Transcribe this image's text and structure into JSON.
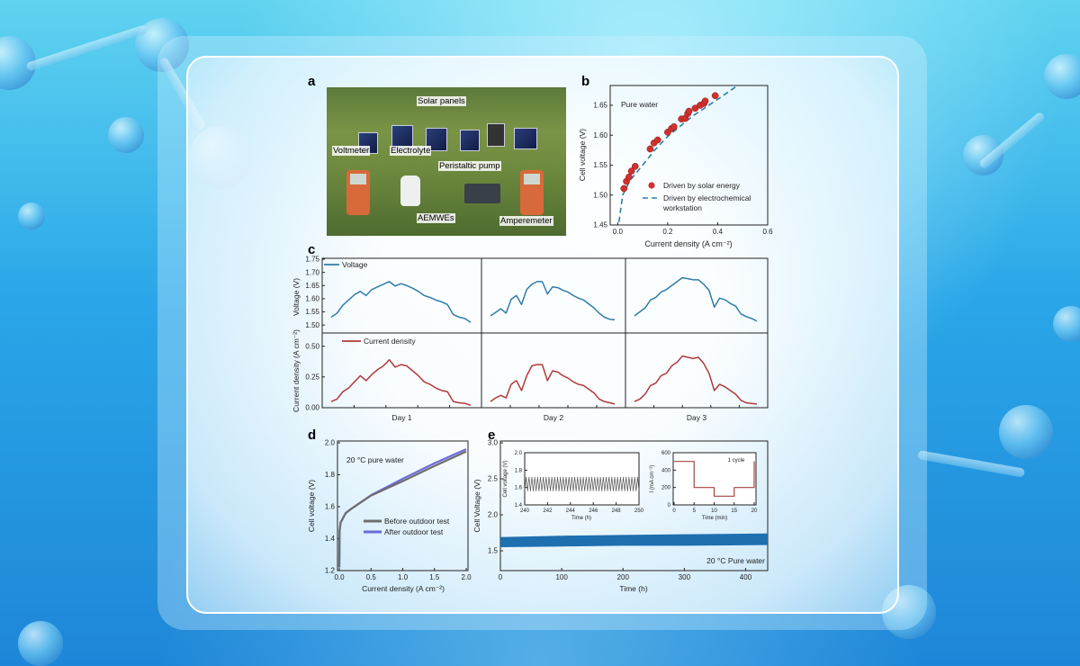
{
  "panel_labels": {
    "a": "a",
    "b": "b",
    "c": "c",
    "d": "d",
    "e": "e"
  },
  "photo": {
    "labels": [
      "Solar panels",
      "Voltmeter",
      "Electrolyte",
      "Peristaltic pump",
      "AEMWEs",
      "Amperemeter"
    ]
  },
  "colors": {
    "voltage": "#2f7cab",
    "current": "#b23a3a",
    "scatter": "#d0312d",
    "dash": "#2f7cab",
    "before": "#6d6d6d",
    "after": "#6a6ad8",
    "band": "#1d6fb0",
    "step": "#a8443f"
  },
  "chart_data": [
    {
      "id": "b",
      "type": "scatter",
      "annotation": "Pure water",
      "xlabel": "Current density (A cm⁻²)",
      "ylabel": "Cell voltage (V)",
      "xlim": [
        -0.03,
        0.6
      ],
      "ylim": [
        1.45,
        1.683
      ],
      "xticks": [
        "0.0",
        "0.2",
        "0.4",
        "0.6"
      ],
      "yticks": [
        "1.45",
        "1.50",
        "1.55",
        "1.60",
        "1.65"
      ],
      "legend_position": "bottom-right",
      "series": [
        {
          "name": "Driven by solar energy",
          "type": "scatter",
          "x": [
            0.025,
            0.035,
            0.045,
            0.055,
            0.07,
            0.13,
            0.145,
            0.16,
            0.2,
            0.215,
            0.225,
            0.255,
            0.27,
            0.28,
            0.285,
            0.31,
            0.33,
            0.345,
            0.35,
            0.39
          ],
          "y": [
            1.511,
            1.523,
            1.53,
            1.54,
            1.548,
            1.577,
            1.587,
            1.592,
            1.605,
            1.611,
            1.614,
            1.627,
            1.628,
            1.636,
            1.64,
            1.645,
            1.65,
            1.653,
            1.657,
            1.666
          ]
        },
        {
          "name": "Driven by electrochemical workstation",
          "type": "dashed-line",
          "x": [
            0.005,
            0.02,
            0.05,
            0.1,
            0.15,
            0.2,
            0.3,
            0.4,
            0.48
          ],
          "y": [
            1.455,
            1.5,
            1.525,
            1.55,
            1.576,
            1.598,
            1.632,
            1.66,
            1.683
          ]
        }
      ]
    },
    {
      "id": "c",
      "type": "line",
      "ylabel_top": "Voltage (V)",
      "ylabel_bottom": "Current density (A cm⁻²)",
      "ylim_top": [
        1.48,
        1.75
      ],
      "ylim_bottom": [
        0,
        0.6
      ],
      "yticks_top": [
        "1.50",
        "1.55",
        "1.60",
        "1.65",
        "1.70",
        "1.75"
      ],
      "yticks_bottom": [
        "0.00",
        "0.25",
        "0.50"
      ],
      "categories": [
        "Day 1",
        "Day 2",
        "Day 3"
      ],
      "series": [
        {
          "name": "Voltage",
          "values": [
            [
              1.53,
              1.545,
              1.575,
              1.595,
              1.615,
              1.628,
              1.612,
              1.635,
              1.645,
              1.655,
              1.665,
              1.648,
              1.657,
              1.65,
              1.64,
              1.628,
              1.612,
              1.605,
              1.595,
              1.588,
              1.578,
              1.54,
              1.53,
              1.525,
              1.51
            ],
            [
              1.535,
              1.548,
              1.562,
              1.545,
              1.598,
              1.612,
              1.578,
              1.635,
              1.655,
              1.665,
              1.665,
              1.618,
              1.645,
              1.642,
              1.632,
              1.625,
              1.612,
              1.602,
              1.595,
              1.58,
              1.565,
              1.545,
              1.53,
              1.522,
              1.52
            ],
            [
              1.535,
              1.55,
              1.565,
              1.595,
              1.605,
              1.625,
              1.635,
              1.65,
              1.665,
              1.68,
              1.676,
              1.672,
              1.672,
              1.655,
              1.632,
              1.568,
              1.602,
              1.596,
              1.582,
              1.572,
              1.542,
              1.532,
              1.525,
              1.515
            ]
          ]
        },
        {
          "name": "Current density",
          "values": [
            [
              0.05,
              0.07,
              0.13,
              0.16,
              0.21,
              0.26,
              0.22,
              0.27,
              0.31,
              0.34,
              0.39,
              0.33,
              0.35,
              0.34,
              0.3,
              0.26,
              0.21,
              0.19,
              0.16,
              0.14,
              0.13,
              0.05,
              0.04,
              0.035,
              0.02
            ],
            [
              0.05,
              0.08,
              0.1,
              0.08,
              0.19,
              0.22,
              0.14,
              0.26,
              0.34,
              0.35,
              0.35,
              0.22,
              0.3,
              0.29,
              0.26,
              0.24,
              0.21,
              0.19,
              0.18,
              0.15,
              0.12,
              0.07,
              0.05,
              0.04,
              0.03
            ],
            [
              0.05,
              0.07,
              0.11,
              0.18,
              0.2,
              0.26,
              0.28,
              0.34,
              0.37,
              0.42,
              0.41,
              0.4,
              0.41,
              0.36,
              0.28,
              0.14,
              0.19,
              0.17,
              0.14,
              0.11,
              0.06,
              0.04,
              0.035,
              0.03
            ]
          ]
        }
      ]
    },
    {
      "id": "d",
      "type": "line",
      "annotation": "20 °C pure water",
      "xlabel": "Current density (A cm⁻²)",
      "ylabel": "Cell voltage (V)",
      "xlim": [
        -0.05,
        2.0
      ],
      "ylim": [
        1.2,
        2.0
      ],
      "xticks": [
        "0.0",
        "0.5",
        "1.0",
        "1.5",
        "2.0"
      ],
      "yticks": [
        "1.2",
        "1.4",
        "1.6",
        "1.8",
        "2.0"
      ],
      "legend_position": "center-right",
      "series": [
        {
          "name": "Before outdoor test",
          "x": [
            0,
            0.005,
            0.02,
            0.1,
            0.2,
            0.5,
            1.0,
            1.5,
            2.0
          ],
          "y": [
            1.22,
            1.45,
            1.5,
            1.56,
            1.59,
            1.67,
            1.76,
            1.855,
            1.945
          ]
        },
        {
          "name": "After outdoor test",
          "x": [
            0,
            0.005,
            0.02,
            0.1,
            0.2,
            0.5,
            1.0,
            1.5,
            2.0
          ],
          "y": [
            1.22,
            1.45,
            1.5,
            1.56,
            1.59,
            1.672,
            1.775,
            1.872,
            1.96
          ]
        }
      ]
    },
    {
      "id": "e",
      "type": "area",
      "annotation": "20 °C Pure water",
      "xlabel": "Time (h)",
      "ylabel": "Cell Voltage (V)",
      "xlim": [
        0,
        436
      ],
      "ylim": [
        1.23,
        3.0
      ],
      "xticks": [
        "0",
        "100",
        "200",
        "300",
        "400"
      ],
      "yticks": [
        "1.5",
        "2.0",
        "2.5",
        "3.0"
      ],
      "band": {
        "x": [
          0,
          100,
          200,
          300,
          436
        ],
        "low": [
          1.55,
          1.56,
          1.57,
          1.57,
          1.58
        ],
        "high": [
          1.69,
          1.71,
          1.72,
          1.73,
          1.74
        ]
      },
      "insets": [
        {
          "type": "line",
          "xlabel": "Time (h)",
          "ylabel": "Cell voltage (V)",
          "xlim": [
            240,
            250
          ],
          "ylim": [
            1.4,
            2.0
          ],
          "xticks": [
            "240",
            "242",
            "244",
            "246",
            "248",
            "250"
          ],
          "yticks": [
            "1.4",
            "1.6",
            "1.8",
            "2.0"
          ],
          "cycles": 40,
          "low": 1.56,
          "high": 1.72
        },
        {
          "type": "step",
          "xlabel": "Time (min)",
          "ylabel": "I (mA cm⁻²)",
          "annotation": "1 cycle",
          "xlim": [
            0,
            20
          ],
          "ylim": [
            0,
            600
          ],
          "xticks": [
            "0",
            "5",
            "10",
            "15",
            "20"
          ],
          "yticks": [
            "0",
            "200",
            "400",
            "600"
          ],
          "x": [
            0,
            5,
            5,
            10,
            10,
            15,
            15,
            20,
            20
          ],
          "y": [
            500,
            500,
            200,
            200,
            100,
            100,
            200,
            200,
            500
          ]
        }
      ]
    }
  ]
}
